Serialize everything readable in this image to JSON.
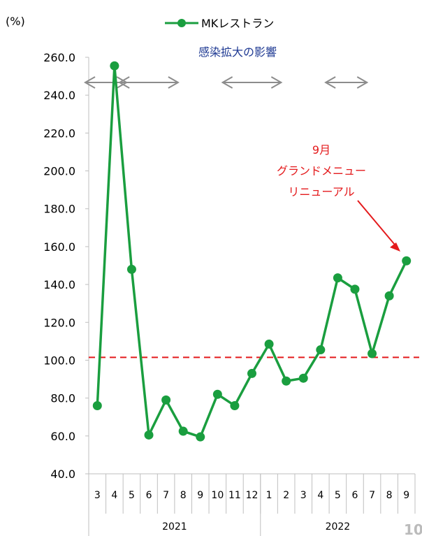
{
  "chart_data": {
    "type": "line",
    "ylabel": "(%)",
    "ylim": [
      40,
      260
    ],
    "yticks": [
      "40.0",
      "60.0",
      "80.0",
      "100.0",
      "120.0",
      "140.0",
      "160.0",
      "180.0",
      "200.0",
      "220.0",
      "240.0",
      "260.0"
    ],
    "categories": [
      "3",
      "4",
      "5",
      "6",
      "7",
      "8",
      "9",
      "10",
      "11",
      "12",
      "1",
      "2",
      "3",
      "4",
      "5",
      "6",
      "7",
      "8",
      "9"
    ],
    "year_groups": [
      {
        "label": "2021",
        "count": 10
      },
      {
        "label": "2022",
        "count": 9
      }
    ],
    "series": [
      {
        "name": "MKレストラン",
        "color": "#1a9e3f",
        "values": [
          76.0,
          255.5,
          148.0,
          60.5,
          79.0,
          62.5,
          59.5,
          82.0,
          76.0,
          93.0,
          108.5,
          89.0,
          90.5,
          105.5,
          143.5,
          137.5,
          103.5,
          134.0,
          152.5
        ]
      }
    ],
    "reference_line": {
      "value": 101.5,
      "color": "#e41a1c"
    },
    "annotations": {
      "impact_label": "感染拡大の影響",
      "impact_ranges": [
        [
          0,
          2
        ],
        [
          2,
          5
        ],
        [
          8,
          11
        ],
        [
          14,
          16
        ]
      ],
      "note_lines": [
        "9月",
        "グランドメニュー",
        "リニューアル"
      ],
      "note_color": "#e41a1c",
      "note_target_index": 18
    },
    "grid": false,
    "legend": "top-center"
  },
  "page_number": "10"
}
